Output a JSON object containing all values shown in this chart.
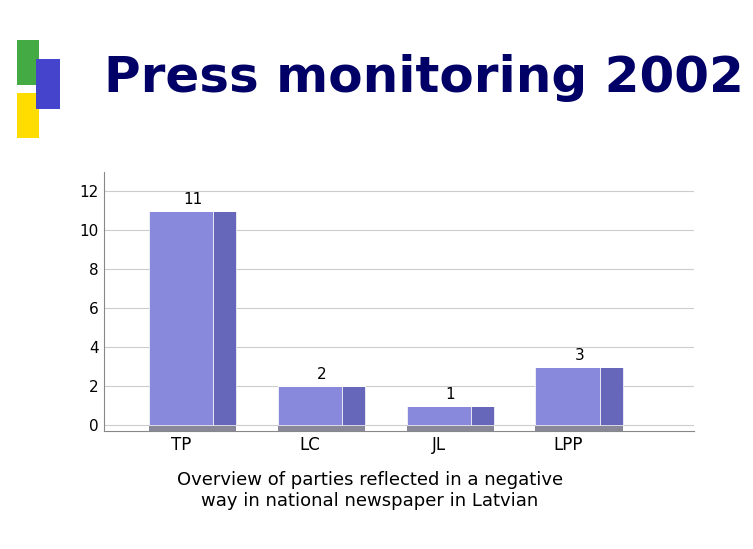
{
  "title": "Press monitoring 2002",
  "subtitle": "Overview of parties reflected in a negative\nway in national newspaper in Latvian",
  "categories": [
    "TP",
    "LC",
    "JL",
    "LPP"
  ],
  "values": [
    11,
    2,
    1,
    3
  ],
  "bar_color_face": "#8888dd",
  "bar_color_light": "#aaaaee",
  "bar_color_dark": "#6666bb",
  "bar_color_shadow": "#888899",
  "title_color": "#000066",
  "title_fontsize": 36,
  "subtitle_fontsize": 13,
  "ylabel_ticks": [
    0,
    2,
    4,
    6,
    8,
    10,
    12
  ],
  "background_color": "#ffffff",
  "chart_bg": "#ffffff",
  "grid_color": "#cccccc",
  "ylim": [
    0,
    13
  ]
}
